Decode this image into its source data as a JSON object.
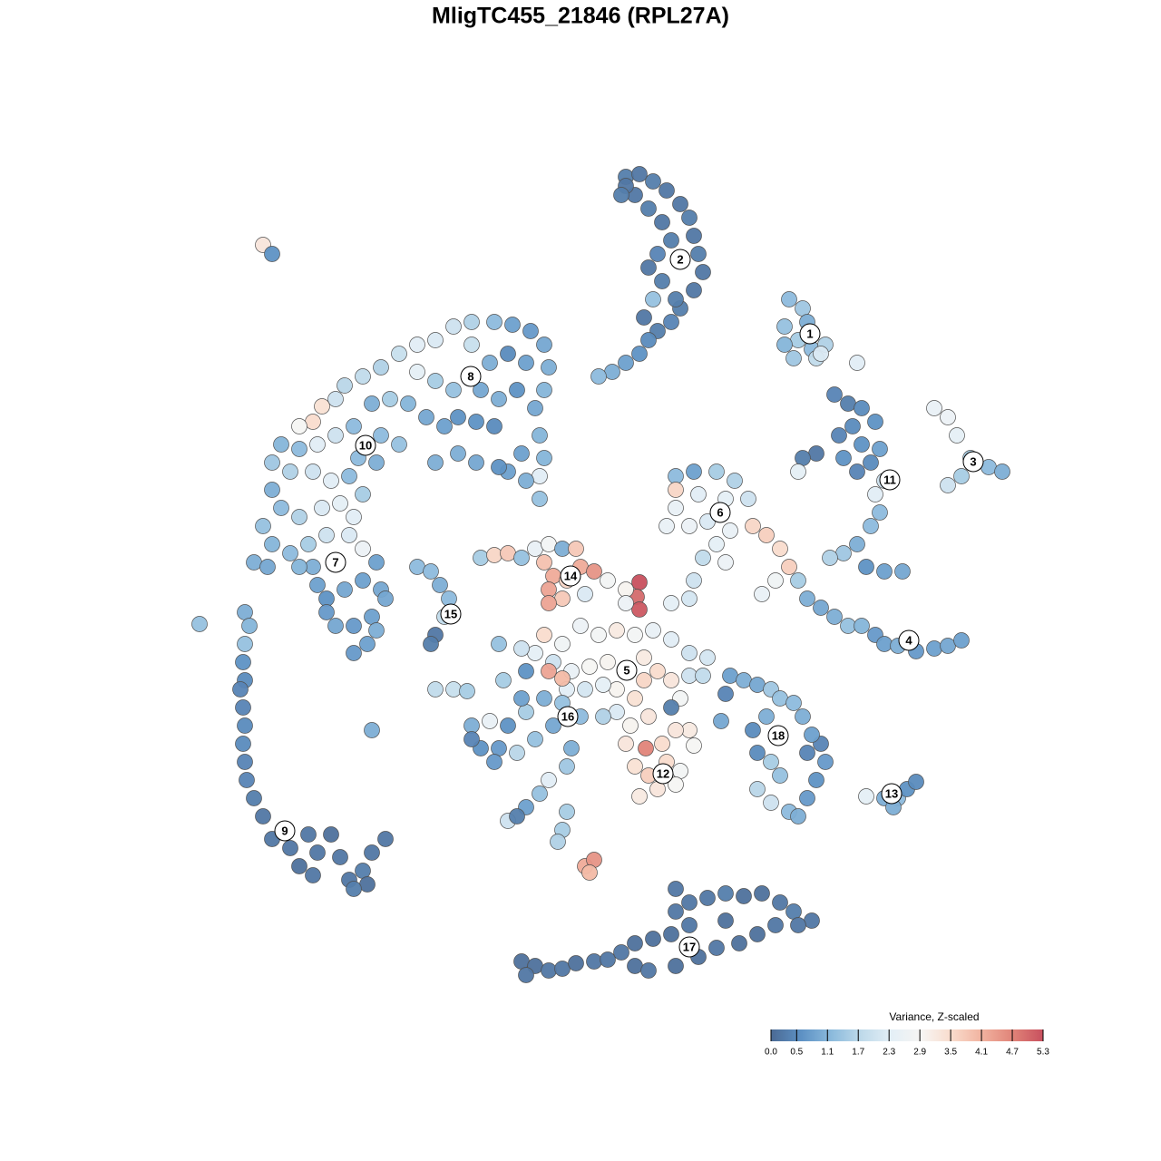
{
  "chart_data": {
    "type": "scatter",
    "title": "MligTC455_21846 (RPL27A)",
    "xlim": [
      0,
      1280
    ],
    "ylim": [
      1280,
      0
    ],
    "x": [
      290,
      300,
      690,
      705,
      720,
      735,
      750,
      760,
      765,
      770,
      775,
      765,
      750,
      740,
      725,
      715,
      705,
      690,
      675,
      660,
      700,
      715,
      730,
      740,
      725,
      715,
      730,
      745,
      710,
      720,
      690,
      685,
      870,
      885,
      865,
      880,
      895,
      910,
      875,
      900,
      865,
      890,
      945,
      905,
      920,
      935,
      950,
      965,
      940,
      925,
      950,
      970,
      960,
      945,
      930,
      900,
      885,
      880,
      965,
      975,
      970,
      960,
      945,
      930,
      915,
      955,
      975,
      995,
      1030,
      1045,
      1055,
      1070,
      1090,
      1105,
      1060,
      1045,
      745,
      765,
      790,
      810,
      825,
      800,
      770,
      745,
      760,
      780,
      805,
      830,
      845,
      790,
      775,
      735,
      745,
      765,
      760,
      740,
      800,
      860,
      870,
      855,
      880,
      890,
      840,
      905,
      920,
      935,
      950,
      965,
      975,
      990,
      1010,
      1030,
      1045,
      1060,
      500,
      520,
      545,
      565,
      585,
      600,
      605,
      600,
      580,
      560,
      540,
      520,
      480,
      460,
      440,
      420,
      400,
      380,
      370,
      355,
      345,
      330,
      460,
      480,
      500,
      530,
      550,
      570,
      590,
      595,
      600,
      595,
      575,
      560,
      545,
      525,
      505,
      490,
      470,
      450,
      430,
      410,
      525,
      505,
      480,
      595,
      580,
      550,
      390,
      370,
      350,
      330,
      310,
      300,
      320,
      345,
      365,
      385,
      405,
      420,
      440,
      415,
      395,
      300,
      310,
      330,
      355,
      375,
      390,
      400,
      290,
      300,
      280,
      320,
      340,
      360,
      385,
      400,
      345,
      330,
      295,
      350,
      360,
      380,
      400,
      420,
      425,
      410,
      390,
      370,
      360,
      405,
      390,
      415,
      415,
      270,
      275,
      270,
      268,
      270,
      265,
      268,
      270,
      268,
      270,
      272,
      280,
      290,
      300,
      320,
      330,
      345,
      350,
      365,
      375,
      385,
      400,
      410,
      425,
      405,
      390,
      340,
      410,
      220,
      460,
      475,
      485,
      495,
      490,
      480,
      475,
      530,
      545,
      560,
      575,
      590,
      605,
      620,
      635,
      600,
      610,
      625,
      605,
      620,
      640,
      655,
      645,
      670,
      605,
      705,
      702,
      705,
      690,
      690,
      640,
      660,
      680,
      700,
      720,
      740,
      760,
      780,
      620,
      600,
      590,
      610,
      630,
      650,
      670,
      710,
      725,
      740,
      710,
      700,
      680,
      665,
      645,
      625,
      605,
      620,
      580,
      550,
      575,
      760,
      775,
      750,
      715,
      695,
      680,
      665,
      740,
      690,
      712,
      700,
      715,
      735,
      750,
      745,
      725,
      705,
      730,
      760,
      765,
      745,
      520,
      540,
      560,
      580,
      600,
      620,
      640,
      610,
      590,
      570,
      550,
      530,
      520,
      545,
      630,
      625,
      605,
      595,
      580,
      560,
      570,
      625,
      620,
      615,
      555,
      575,
      480,
      500,
      515,
      645,
      655,
      650,
      805,
      820,
      835,
      850,
      860,
      875,
      845,
      830,
      835,
      850,
      860,
      835,
      850,
      870,
      880,
      890,
      900,
      910,
      905,
      895,
      890,
      800,
      795,
      885,
      955,
      975,
      990,
      1000,
      1010,
      985,
      575,
      590,
      605,
      620,
      635,
      655,
      670,
      685,
      700,
      715,
      700,
      720,
      740,
      745,
      760,
      780,
      800,
      820,
      840,
      860,
      875,
      895,
      880,
      855,
      835,
      815,
      790,
      770,
      745,
      745,
      760,
      800,
      580
    ],
    "y": [
      270,
      280,
      195,
      192,
      200,
      210,
      225,
      240,
      260,
      280,
      300,
      320,
      340,
      355,
      365,
      375,
      390,
      400,
      410,
      415,
      215,
      230,
      245,
      265,
      280,
      295,
      310,
      330,
      350,
      330,
      205,
      215,
      330,
      340,
      360,
      375,
      385,
      380,
      395,
      395,
      380,
      355,
      400,
      390,
      435,
      445,
      450,
      465,
      470,
      480,
      490,
      495,
      510,
      520,
      505,
      500,
      505,
      520,
      545,
      530,
      565,
      580,
      600,
      610,
      615,
      625,
      630,
      630,
      450,
      460,
      480,
      505,
      515,
      520,
      525,
      535,
      525,
      520,
      520,
      530,
      550,
      550,
      545,
      560,
      580,
      575,
      585,
      580,
      590,
      600,
      615,
      580,
      540,
      640,
      660,
      665,
      620,
      605,
      625,
      640,
      640,
      660,
      655,
      670,
      680,
      690,
      690,
      700,
      710,
      712,
      718,
      715,
      712,
      706,
      360,
      355,
      355,
      358,
      365,
      380,
      405,
      430,
      400,
      390,
      400,
      380,
      375,
      380,
      390,
      405,
      415,
      425,
      440,
      448,
      465,
      470,
      410,
      420,
      430,
      430,
      440,
      430,
      450,
      480,
      505,
      525,
      500,
      520,
      470,
      465,
      460,
      470,
      460,
      445,
      440,
      445,
      510,
      500,
      510,
      550,
      530,
      515,
      470,
      480,
      490,
      495,
      490,
      510,
      520,
      520,
      530,
      525,
      490,
      480,
      490,
      510,
      505,
      540,
      560,
      570,
      560,
      555,
      570,
      545,
      580,
      600,
      620,
      610,
      600,
      590,
      590,
      605,
      625,
      625,
      625,
      645,
      660,
      650,
      640,
      650,
      660,
      680,
      690,
      690,
      675,
      710,
      720,
      620,
      695,
      675,
      690,
      710,
      730,
      750,
      760,
      780,
      800,
      820,
      840,
      860,
      880,
      900,
      925,
      935,
      955,
      965,
      940,
      920,
      945,
      970,
      960,
      940,
      925,
      975,
      980,
      920,
      805,
      688,
      625,
      630,
      645,
      660,
      680,
      700,
      710,
      615,
      612,
      610,
      615,
      605,
      600,
      605,
      605,
      620,
      635,
      640,
      650,
      660,
      625,
      630,
      655,
      640,
      665,
      642,
      658,
      672,
      650,
      665,
      690,
      700,
      695,
      700,
      695,
      705,
      720,
      725,
      710,
      700,
      720,
      730,
      740,
      735,
      730,
      725,
      740,
      750,
      750,
      770,
      760,
      755,
      760,
      760,
      740,
      748,
      740,
      710,
      715,
      745,
      745,
      770,
      790,
      800,
      785,
      790,
      780,
      820,
      825,
      845,
      855,
      840,
      850,
      865,
      870,
      878,
      820,
      805,
      822,
      805,
      800,
      795,
      800,
      785,
      770,
      775,
      790,
      800,
      815,
      830,
      825,
      825,
      815,
      840,
      825,
      845,
      860,
      875,
      890,
      905,
      900,
      895,
      915,
      928,
      750,
      770,
      760,
      760,
      762,
      955,
      948,
      962,
      745,
      750,
      755,
      760,
      770,
      775,
      790,
      805,
      830,
      840,
      855,
      870,
      885,
      895,
      900,
      880,
      860,
      840,
      820,
      810,
      830,
      765,
      795,
      790,
      878,
      880,
      880,
      870,
      862,
      890,
      1060,
      1065,
      1070,
      1068,
      1062,
      1060,
      1058,
      1050,
      1065,
      1070,
      1040,
      1035,
      1030,
      1005,
      995,
      990,
      985,
      988,
      985,
      995,
      1005,
      1015,
      1020,
      1020,
      1030,
      1040,
      1045,
      1055,
      1065,
      980,
      1020,
      1015,
      1075
    ],
    "values": [
      3.3,
      0.6,
      0.3,
      0.2,
      0.3,
      0.2,
      0.2,
      0.3,
      0.2,
      0.3,
      0.2,
      0.2,
      0.3,
      0.4,
      0.3,
      0.5,
      0.6,
      0.8,
      1.0,
      1.2,
      0.2,
      0.3,
      0.2,
      0.3,
      0.4,
      0.2,
      0.3,
      0.3,
      0.2,
      1.3,
      0.2,
      0.3,
      1.2,
      1.4,
      1.3,
      1.5,
      1.2,
      1.6,
      1.4,
      1.8,
      1.1,
      1.0,
      2.3,
      2.2,
      0.4,
      0.3,
      0.5,
      0.6,
      0.5,
      0.4,
      0.6,
      0.8,
      0.5,
      0.4,
      0.6,
      0.2,
      0.3,
      2.4,
      2.3,
      2.0,
      1.2,
      1.2,
      1.0,
      1.4,
      1.6,
      0.6,
      0.8,
      0.9,
      2.5,
      2.6,
      2.4,
      1.5,
      1.2,
      1.0,
      1.5,
      2.0,
      1.2,
      0.8,
      1.5,
      1.6,
      2.0,
      2.4,
      2.3,
      2.5,
      2.6,
      2.2,
      2.5,
      3.6,
      3.7,
      2.4,
      1.8,
      2.5,
      3.6,
      2.0,
      2.1,
      2.4,
      2.6,
      3.5,
      3.7,
      2.7,
      1.5,
      1.0,
      2.5,
      0.9,
      1.0,
      1.3,
      1.1,
      0.7,
      0.8,
      1.0,
      0.7,
      0.8,
      0.9,
      0.8,
      2.0,
      1.6,
      1.2,
      0.8,
      0.7,
      0.9,
      1.0,
      1.1,
      0.8,
      0.5,
      1.0,
      1.9,
      2.2,
      2.3,
      1.9,
      1.6,
      1.8,
      1.7,
      2.0,
      3.4,
      3.5,
      2.9,
      2.4,
      1.5,
      1.3,
      0.9,
      1.0,
      0.6,
      0.9,
      1.1,
      1.1,
      2.3,
      0.8,
      0.8,
      0.5,
      0.6,
      0.6,
      0.8,
      0.9,
      1.1,
      1.5,
      1.0,
      0.9,
      1.0,
      1.0,
      1.3,
      1.0,
      0.6,
      1.2,
      2.0,
      2.3,
      1.2,
      1.1,
      1.4,
      1.6,
      2.0,
      2.3,
      1.2,
      1.0,
      1.2,
      1.3,
      1.0,
      1.2,
      1.0,
      1.2,
      1.6,
      2.2,
      2.4,
      2.3,
      1.5,
      1.3,
      1.1,
      1.0,
      1.2,
      1.5,
      2.0,
      2.2,
      2.6,
      1.0,
      1.1,
      0.9,
      0.8,
      0.6,
      0.9,
      0.8,
      0.9,
      0.9,
      0.8,
      0.7,
      0.9,
      0.7,
      0.8,
      0.7,
      0.8,
      1.0,
      1.0,
      1.1,
      1.3,
      0.6,
      0.5,
      0.4,
      0.4,
      0.5,
      0.5,
      0.4,
      0.4,
      0.3,
      0.2,
      0.2,
      0.2,
      0.1,
      0.2,
      0.2,
      0.1,
      0.2,
      0.2,
      0.3,
      0.2,
      0.2,
      0.1,
      0.3,
      0.2,
      1.0,
      1.3,
      1.2,
      1.2,
      1.0,
      1.2,
      1.8,
      0.2,
      0.3,
      1.5,
      3.6,
      3.8,
      1.3,
      2.5,
      2.8,
      1.0,
      3.8,
      3.9,
      4.2,
      3.6,
      4.3,
      3.8,
      4.2,
      4.5,
      2.2,
      2.8,
      4.3,
      5.3,
      5.0,
      5.2,
      3.0,
      2.6,
      2.6,
      2.8,
      3.2,
      2.8,
      2.5,
      2.3,
      2.0,
      2.1,
      2.7,
      3.5,
      2.4,
      2.0,
      2.5,
      2.9,
      3.0,
      3.2,
      3.5,
      3.3,
      3.6,
      3.4,
      3.0,
      2.4,
      2.1,
      2.3,
      4.3,
      4.0,
      0.6,
      1.3,
      2.0,
      2.0,
      1.8,
      2.8,
      3.3,
      3.0,
      2.2,
      1.6,
      0.3,
      3.3,
      4.7,
      3.4,
      3.7,
      3.5,
      2.8,
      2.9,
      3.3,
      3.2,
      3.5,
      3.2,
      2.9,
      3.3,
      1.0,
      2.5,
      0.6,
      1.5,
      1.0,
      1.3,
      1.2,
      0.9,
      1.3,
      1.7,
      0.7,
      0.6,
      0.4,
      0.7,
      1.0,
      1.4,
      2.3,
      1.3,
      0.8,
      2.0,
      0.3,
      1.5,
      1.5,
      1.6,
      1.5,
      0.8,
      1.8,
      1.9,
      1.5,
      4.2,
      4.5,
      4.0,
      0.8,
      1.0,
      0.9,
      1.4,
      1.3,
      1.2,
      1.0,
      0.5,
      0.5,
      1.5,
      1.3,
      1.7,
      2.0,
      1.2,
      1.0,
      0.7,
      0.6,
      0.7,
      0.4,
      0.8,
      0.4,
      0.4,
      0.9,
      1.0,
      2.4,
      1.0,
      1.2,
      0.6,
      0.5,
      1.0,
      0.1,
      0.1,
      0.2,
      0.2,
      0.1,
      0.2,
      0.2,
      0.2,
      0.1,
      0.2,
      0.1,
      0.1,
      0.1,
      0.2,
      0.2,
      0.2,
      0.3,
      0.1,
      0.1,
      0.2,
      0.3,
      0.2,
      0.2,
      0.2,
      0.1,
      0.1,
      0.2,
      0.1,
      0.1,
      0.2,
      0.2,
      0.1,
      0.2
    ],
    "clusters": {
      "labels": [
        "1",
        "2",
        "3",
        "4",
        "5",
        "6",
        "7",
        "8",
        "9",
        "10",
        "11",
        "12",
        "13",
        "14",
        "15",
        "16",
        "17",
        "18"
      ],
      "x": [
        893,
        750,
        1073,
        1002,
        691,
        794,
        370,
        519,
        314,
        403,
        981,
        731,
        983,
        629,
        497,
        626,
        760,
        858
      ],
      "y": [
        368,
        286,
        509,
        706,
        739,
        565,
        620,
        415,
        916,
        491,
        529,
        853,
        875,
        635,
        677,
        790,
        1044,
        811
      ]
    },
    "colorbar": {
      "title": "Variance, Z-scaled",
      "lim": [
        0,
        5.3
      ],
      "ticks": [
        {
          "value": 0,
          "label": "0.0"
        },
        0.5,
        1.1,
        1.7,
        2.3,
        2.9,
        3.5,
        4.1,
        4.7,
        5.3
      ],
      "colors": [
        "#4b6a94",
        "#5d91c4",
        "#8bbadc",
        "#bfdaea",
        "#e4eff6",
        "#f7f5f3",
        "#f9dbcb",
        "#f1b19e",
        "#e08378",
        "#c8505e"
      ]
    }
  }
}
